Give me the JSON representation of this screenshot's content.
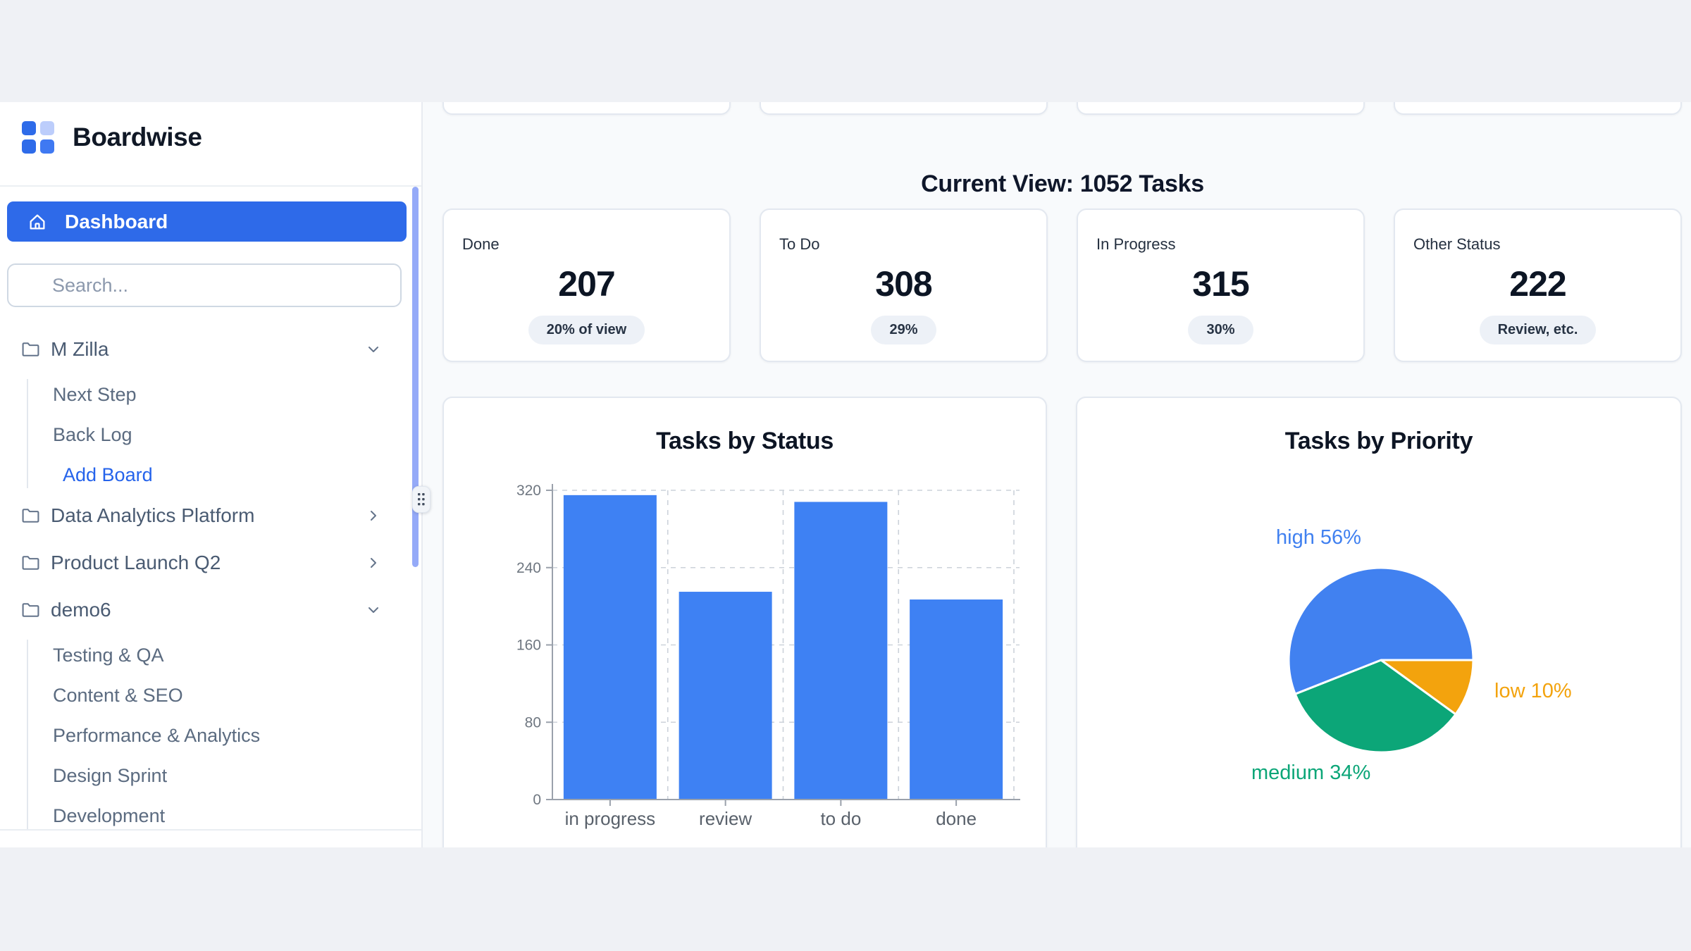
{
  "app": {
    "title": "Boardwise"
  },
  "sidebar": {
    "dashboard_label": "Dashboard",
    "search_placeholder": "Search...",
    "tree": [
      {
        "label": "M Zilla",
        "expanded": true,
        "children": [
          {
            "label": "Next Step"
          },
          {
            "label": "Back Log"
          },
          {
            "label": "Add Board",
            "accent": true
          }
        ]
      },
      {
        "label": "Data Analytics Platform",
        "expanded": false,
        "children": []
      },
      {
        "label": "Product Launch Q2",
        "expanded": false,
        "children": []
      },
      {
        "label": "demo6",
        "expanded": true,
        "children": [
          {
            "label": "Testing & QA"
          },
          {
            "label": "Content & SEO"
          },
          {
            "label": "Performance & Analytics"
          },
          {
            "label": "Design Sprint"
          },
          {
            "label": "Development"
          }
        ]
      }
    ]
  },
  "main": {
    "heading": "Current View: 1052 Tasks",
    "stats": [
      {
        "label": "Done",
        "value": "207",
        "badge": "20% of view"
      },
      {
        "label": "To Do",
        "value": "308",
        "badge": "29%"
      },
      {
        "label": "In Progress",
        "value": "315",
        "badge": "30%"
      },
      {
        "label": "Other Status",
        "value": "222",
        "badge": "Review, etc."
      }
    ]
  },
  "chart_data": [
    {
      "type": "bar",
      "title": "Tasks by Status",
      "categories": [
        "in progress",
        "review",
        "to do",
        "done"
      ],
      "values": [
        315,
        215,
        308,
        207
      ],
      "xlabel": "",
      "ylabel": "",
      "ylim": [
        0,
        320
      ],
      "yticks": [
        0,
        80,
        160,
        240,
        320
      ],
      "grid": "dashed",
      "legend": "none",
      "bar_color": "#3e81f3"
    },
    {
      "type": "pie",
      "title": "Tasks by Priority",
      "slices": [
        {
          "label": "high",
          "pct": 56,
          "color": "#4181f0"
        },
        {
          "label": "medium",
          "pct": 34,
          "color": "#0ca678"
        },
        {
          "label": "low",
          "pct": 10,
          "color": "#f3a30d"
        }
      ],
      "clockwise_order_from_east": [
        "low",
        "medium",
        "high"
      ],
      "legend": "labels-around-pie"
    }
  ],
  "colors": {
    "accent_blue": "#2e6ae9",
    "bar_blue": "#3e81f3",
    "pie_green": "#0ca678",
    "pie_orange": "#f3a30d",
    "scrollbar_thumb": "#95aaf8",
    "main_bg": "#f8fafc",
    "badge_bg": "#edf1f7"
  }
}
